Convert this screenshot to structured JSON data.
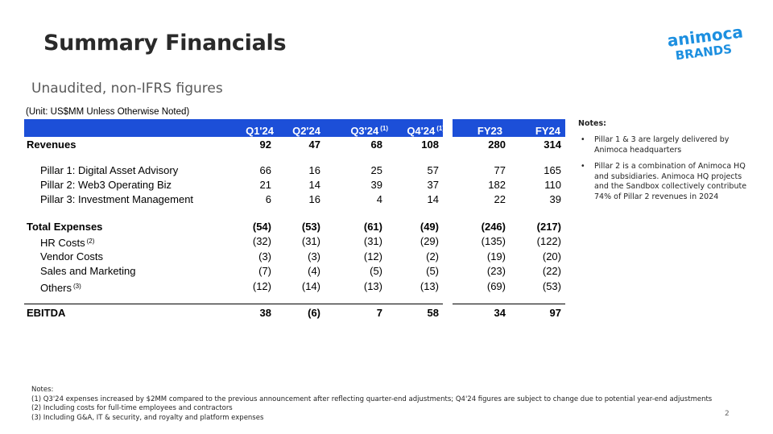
{
  "title": "Summary Financials",
  "subtitle": "Unaudited, non-IFRS figures",
  "logo": {
    "line1": "animoca",
    "line2": "BRANDS",
    "color": "#1c8fe0"
  },
  "unit_note": "(Unit: US$MM Unless Otherwise Noted)",
  "columns": [
    {
      "label": "Q1'24",
      "sup": ""
    },
    {
      "label": "Q2'24",
      "sup": ""
    },
    {
      "label": "Q3'24",
      "sup": "(1)"
    },
    {
      "label": "Q4'24",
      "sup": "(1)"
    },
    {
      "label": "FY23",
      "sup": ""
    },
    {
      "label": "FY24",
      "sup": ""
    }
  ],
  "rows": [
    {
      "label": "Revenues",
      "sup": "",
      "values": [
        "92",
        "47",
        "68",
        "108",
        "280",
        "314"
      ]
    },
    {
      "label": "Pillar 1: Digital Asset Advisory",
      "sup": "",
      "values": [
        "66",
        "16",
        "25",
        "57",
        "77",
        "165"
      ]
    },
    {
      "label": "Pillar 2: Web3 Operating Biz",
      "sup": "",
      "values": [
        "21",
        "14",
        "39",
        "37",
        "182",
        "110"
      ]
    },
    {
      "label": "Pillar 3: Investment Management",
      "sup": "",
      "values": [
        "6",
        "16",
        "4",
        "14",
        "22",
        "39"
      ]
    },
    {
      "label": "Total Expenses",
      "sup": "",
      "values": [
        "(54)",
        "(53)",
        "(61)",
        "(49)",
        "(246)",
        "(217)"
      ]
    },
    {
      "label": "HR Costs",
      "sup": "(2)",
      "values": [
        "(32)",
        "(31)",
        "(31)",
        "(29)",
        "(135)",
        "(122)"
      ]
    },
    {
      "label": "Vendor Costs",
      "sup": "",
      "values": [
        "(3)",
        "(3)",
        "(12)",
        "(2)",
        "(19)",
        "(20)"
      ]
    },
    {
      "label": "Sales and Marketing",
      "sup": "",
      "values": [
        "(7)",
        "(4)",
        "(5)",
        "(5)",
        "(23)",
        "(22)"
      ]
    },
    {
      "label": "Others",
      "sup": "(3)",
      "values": [
        "(12)",
        "(14)",
        "(13)",
        "(13)",
        "(69)",
        "(53)"
      ]
    },
    {
      "label": "EBITDA",
      "sup": "",
      "values": [
        "38",
        "(6)",
        "7",
        "58",
        "34",
        "97"
      ]
    }
  ],
  "side_notes": {
    "title": "Notes:",
    "bullets": [
      "Pillar 1 & 3 are largely delivered by Animoca headquarters",
      "Pillar 2 is a combination of Animoca HQ and subsidiaries. Animoca HQ projects and the Sandbox collectively contribute 74% of Pillar 2 revenues in 2024"
    ]
  },
  "footnotes": {
    "title": "Notes:",
    "lines": [
      "(1) Q3'24 expenses increased by $2MM compared to the previous announcement after reflecting quarter-end adjustments; Q4'24 figures are subject to change due to potential year-end adjustments",
      "(2) Including costs for full-time employees and contractors",
      "(3) Including G&A, IT & security, and royalty and platform expenses"
    ]
  },
  "page_number": "2",
  "colors": {
    "header_blue": "#1c4fd8",
    "title": "#2a2a2a"
  }
}
